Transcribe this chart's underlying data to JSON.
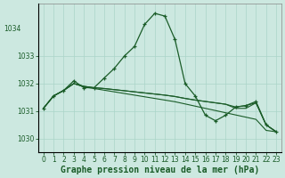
{
  "title": "Graphe pression niveau de la mer (hPa)",
  "bg_color": "#cce8e0",
  "grid_color": "#aad4c8",
  "line_color": "#1a5c28",
  "xlim": [
    -0.5,
    23.5
  ],
  "ylim": [
    1029.5,
    1034.9
  ],
  "yticks": [
    1030,
    1031,
    1032,
    1033
  ],
  "ytick_top": 1034,
  "xticks": [
    0,
    1,
    2,
    3,
    4,
    5,
    6,
    7,
    8,
    9,
    10,
    11,
    12,
    13,
    14,
    15,
    16,
    17,
    18,
    19,
    20,
    21,
    22,
    23
  ],
  "series_main": [
    1031.1,
    1031.55,
    1031.75,
    1032.1,
    1031.85,
    1031.85,
    1032.2,
    1032.55,
    1033.0,
    1033.35,
    1034.15,
    1034.55,
    1034.45,
    1033.6,
    1032.0,
    1031.55,
    1030.85,
    1030.65,
    1030.85,
    1031.15,
    1031.2,
    1031.35,
    1030.5,
    1030.25
  ],
  "series_line1": [
    1031.1,
    1031.55,
    1031.75,
    1032.0,
    1031.9,
    1031.85,
    1031.82,
    1031.78,
    1031.74,
    1031.7,
    1031.66,
    1031.62,
    1031.58,
    1031.53,
    1031.46,
    1031.4,
    1031.35,
    1031.3,
    1031.25,
    1031.15,
    1031.2,
    1031.3,
    1030.5,
    1030.25
  ],
  "series_line2": [
    1031.1,
    1031.55,
    1031.75,
    1032.0,
    1031.9,
    1031.85,
    1031.82,
    1031.78,
    1031.74,
    1031.7,
    1031.66,
    1031.62,
    1031.58,
    1031.53,
    1031.46,
    1031.4,
    1031.35,
    1031.3,
    1031.25,
    1031.1,
    1031.1,
    1031.3,
    1030.5,
    1030.25
  ],
  "series_line3": [
    1031.1,
    1031.55,
    1031.75,
    1032.0,
    1031.88,
    1031.82,
    1031.76,
    1031.7,
    1031.64,
    1031.58,
    1031.52,
    1031.46,
    1031.4,
    1031.34,
    1031.26,
    1031.18,
    1031.1,
    1031.02,
    1030.94,
    1030.86,
    1030.78,
    1030.7,
    1030.3,
    1030.25
  ],
  "tick_fontsize": 5.5,
  "title_fontsize": 7.0,
  "figsize": [
    3.2,
    2.0
  ],
  "dpi": 100
}
